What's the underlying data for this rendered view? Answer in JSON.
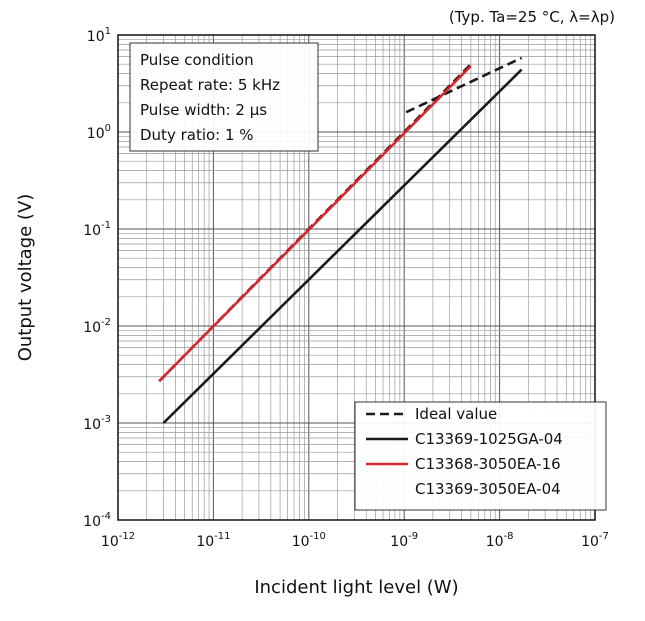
{
  "chart_data": {
    "type": "line",
    "note": "(Typ. Ta=25 °C, λ=λp)",
    "xlabel": "Incident light level (W)",
    "ylabel": "Output voltage (V)",
    "x_scale": "log",
    "y_scale": "log",
    "xlim": [
      1e-12,
      1e-07
    ],
    "ylim": [
      0.0001,
      10
    ],
    "x_ticks": [
      {
        "base": "10",
        "exp": "-12",
        "value": 1e-12
      },
      {
        "base": "10",
        "exp": "-11",
        "value": 1e-11
      },
      {
        "base": "10",
        "exp": "-10",
        "value": 1e-10
      },
      {
        "base": "10",
        "exp": "-9",
        "value": 1e-09
      },
      {
        "base": "10",
        "exp": "-8",
        "value": 1e-08
      },
      {
        "base": "10",
        "exp": "-7",
        "value": 1e-07
      }
    ],
    "y_ticks": [
      {
        "base": "10",
        "exp": "-4",
        "value": 0.0001
      },
      {
        "base": "10",
        "exp": "-3",
        "value": 0.001
      },
      {
        "base": "10",
        "exp": "-2",
        "value": 0.01
      },
      {
        "base": "10",
        "exp": "-1",
        "value": 0.1
      },
      {
        "base": "10",
        "exp": "0",
        "value": 1
      },
      {
        "base": "10",
        "exp": "1",
        "value": 10
      }
    ],
    "grid": true,
    "conditions": {
      "title": "Pulse condition",
      "lines": [
        "Repeat rate: 5 kHz",
        "Pulse width: 2 μs",
        "Duty ratio: 1 %"
      ]
    },
    "legend_position": "bottom-right",
    "series": [
      {
        "name": "Ideal value",
        "style": "dashed",
        "color": "#1a1a1a",
        "points": [
          [
            2.7e-12,
            0.0027
          ],
          [
            5.2e-09,
            5.2
          ]
        ]
      },
      {
        "name": "Ideal value",
        "style": "dashed",
        "color": "#1a1a1a",
        "points": [
          [
            1.05e-09,
            1.6
          ],
          [
            1.7e-08,
            5.8
          ]
        ]
      },
      {
        "name": "C13369-1025GA-04",
        "style": "solid",
        "color": "#1a1a1a",
        "points": [
          [
            3e-12,
            0.001
          ],
          [
            1.7e-08,
            4.4
          ]
        ]
      },
      {
        "name": "C13368-3050EA-16 / C13369-3050EA-04",
        "style": "solid",
        "color": "#d9272e",
        "points": [
          [
            2.7e-12,
            0.0027
          ],
          [
            5e-09,
            4.8
          ]
        ]
      }
    ],
    "legend": [
      {
        "label": "Ideal value",
        "style": "dashed",
        "color": "#1a1a1a"
      },
      {
        "label": "C13369-1025GA-04",
        "style": "solid",
        "color": "#1a1a1a"
      },
      {
        "label": "C13368-3050EA-16",
        "style": "solid",
        "color": "#d9272e"
      },
      {
        "label": "C13369-3050EA-04",
        "style": "none",
        "color": "#d9272e"
      }
    ]
  }
}
